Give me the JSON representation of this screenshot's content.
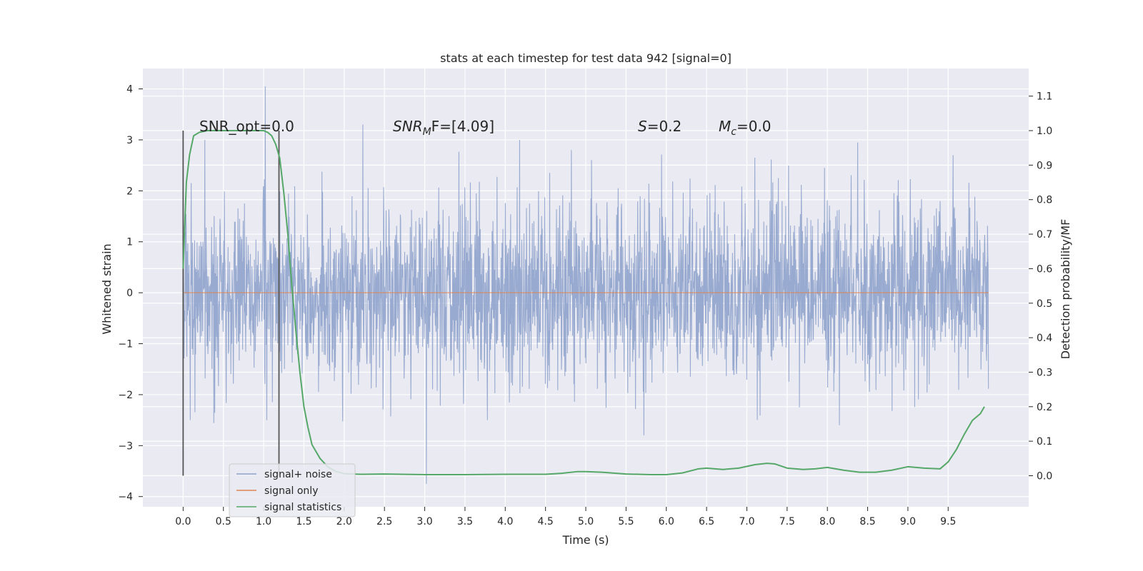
{
  "chart_data": {
    "type": "line",
    "title": "stats at each timestep for test data 942 [signal=0]",
    "xlabel": "Time (s)",
    "ylabel": "Whitened strain",
    "y2label": "Detection probability/MF",
    "xlim": [
      -0.5,
      10.5
    ],
    "ylim": [
      -4.2,
      4.4
    ],
    "y2lim": [
      -0.09,
      1.18
    ],
    "x_ticks": [
      "0.0",
      "0.5",
      "1.0",
      "1.5",
      "2.0",
      "2.5",
      "3.0",
      "3.5",
      "4.0",
      "4.5",
      "5.0",
      "5.5",
      "6.0",
      "6.5",
      "7.0",
      "7.5",
      "8.0",
      "8.5",
      "9.0",
      "9.5"
    ],
    "y_ticks": [
      "4",
      "3",
      "2",
      "1",
      "0",
      "−1",
      "−2",
      "−3",
      "−4"
    ],
    "y2_ticks": [
      "1.1",
      "1.0",
      "0.9",
      "0.8",
      "0.7",
      "0.6",
      "0.5",
      "0.4",
      "0.3",
      "0.2",
      "0.1",
      "0.0"
    ],
    "grid": true,
    "legend_position": "lower-left",
    "colors": {
      "noise": "#8fa3cc",
      "signal": "#dd8452",
      "stats": "#55a868",
      "background": "#eaeaf2",
      "vline": "#555555"
    },
    "annotations": {
      "snr_opt": "SNR_opt=0.0",
      "snr_mf_base": "SNR",
      "snr_mf_sub": "M",
      "snr_mf_rest": "F=[4.09]",
      "s_label": "S",
      "s_value": "=0.2",
      "mc_base": "M",
      "mc_sub": "c",
      "mc_value": "=0.0"
    },
    "vertical_lines": [
      0.0,
      1.19
    ],
    "series": [
      {
        "name": "signal+ noise",
        "kind": "noise",
        "x_range": [
          0.0,
          10.0
        ],
        "std": 0.85,
        "spikes": [
          [
            1.02,
            4.05
          ],
          [
            3.02,
            -3.75
          ],
          [
            2.23,
            3.3
          ],
          [
            0.27,
            3.0
          ],
          [
            4.18,
            3.0
          ],
          [
            4.82,
            2.8
          ],
          [
            5.72,
            -2.8
          ],
          [
            8.15,
            -2.6
          ],
          [
            7.1,
            2.65
          ],
          [
            9.56,
            2.7
          ],
          [
            1.04,
            -2.5
          ],
          [
            0.09,
            -2.5
          ]
        ]
      },
      {
        "name": "signal only",
        "kind": "flat",
        "x": [
          0.0,
          10.0
        ],
        "y": [
          0.0,
          0.0
        ]
      },
      {
        "name": "signal statistics",
        "kind": "secondary",
        "x": [
          0.0,
          0.04,
          0.08,
          0.13,
          0.2,
          0.3,
          0.5,
          0.7,
          0.9,
          1.0,
          1.05,
          1.1,
          1.15,
          1.2,
          1.25,
          1.3,
          1.35,
          1.4,
          1.45,
          1.5,
          1.55,
          1.6,
          1.7,
          1.8,
          1.9,
          2.0,
          2.2,
          2.5,
          3.0,
          3.5,
          4.0,
          4.5,
          4.7,
          4.9,
          5.0,
          5.2,
          5.5,
          5.8,
          6.0,
          6.2,
          6.4,
          6.5,
          6.7,
          6.9,
          7.1,
          7.25,
          7.35,
          7.5,
          7.7,
          7.85,
          8.0,
          8.2,
          8.4,
          8.6,
          8.8,
          9.0,
          9.2,
          9.4,
          9.5,
          9.6,
          9.7,
          9.8,
          9.9,
          9.95
        ],
        "y": [
          0.6,
          0.85,
          0.93,
          0.985,
          0.995,
          1.0,
          1.0,
          1.0,
          1.0,
          1.0,
          0.995,
          0.985,
          0.96,
          0.92,
          0.82,
          0.7,
          0.55,
          0.42,
          0.3,
          0.2,
          0.14,
          0.09,
          0.05,
          0.025,
          0.012,
          0.006,
          0.004,
          0.005,
          0.003,
          0.003,
          0.004,
          0.004,
          0.007,
          0.012,
          0.012,
          0.01,
          0.005,
          0.003,
          0.003,
          0.008,
          0.02,
          0.022,
          0.018,
          0.022,
          0.032,
          0.036,
          0.034,
          0.022,
          0.018,
          0.02,
          0.024,
          0.016,
          0.01,
          0.01,
          0.016,
          0.026,
          0.022,
          0.02,
          0.04,
          0.075,
          0.12,
          0.16,
          0.18,
          0.2
        ]
      }
    ]
  }
}
